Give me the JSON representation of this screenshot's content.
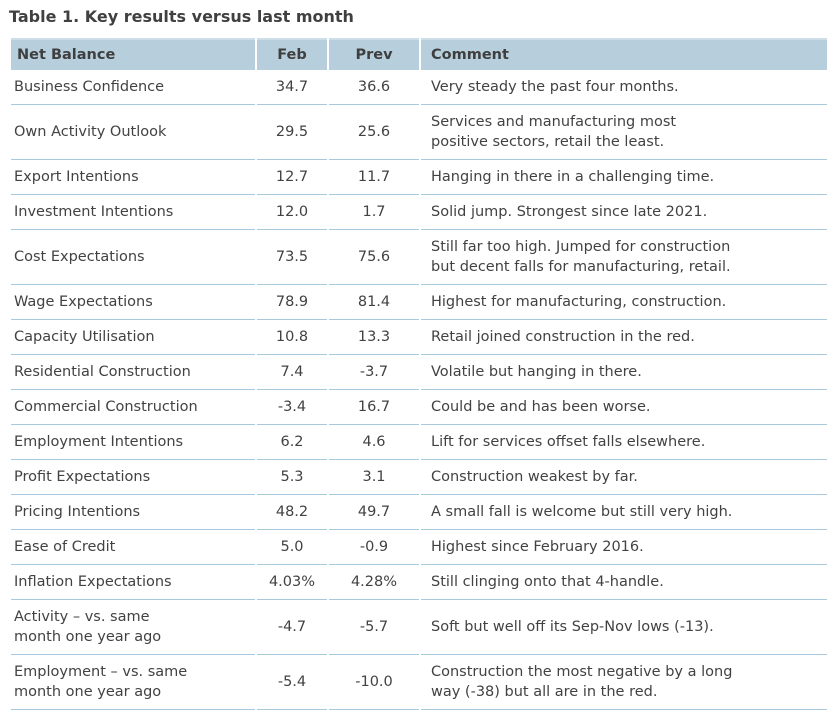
{
  "title": "Table 1. Key results versus last month",
  "colors": {
    "header_bg": "#b7cfdd",
    "row_border": "#a9cadd",
    "text": "#424242",
    "title_text": "#404040"
  },
  "table": {
    "columns": [
      "Net Balance",
      "Feb",
      "Prev",
      "Comment"
    ],
    "rows": [
      {
        "label": "Business Confidence",
        "feb": "34.7",
        "prev": "36.6",
        "comment": "Very steady the past four months."
      },
      {
        "label": "Own Activity Outlook",
        "feb": "29.5",
        "prev": "25.6",
        "comment": "Services and manufacturing most\npositive sectors, retail the least."
      },
      {
        "label": "Export Intentions",
        "feb": "12.7",
        "prev": "11.7",
        "comment": "Hanging in there in a challenging time."
      },
      {
        "label": "Investment Intentions",
        "feb": "12.0",
        "prev": "1.7",
        "comment": "Solid jump. Strongest since late 2021."
      },
      {
        "label": "Cost Expectations",
        "feb": "73.5",
        "prev": "75.6",
        "comment": "Still far too high. Jumped for construction\nbut decent falls for manufacturing, retail."
      },
      {
        "label": "Wage Expectations",
        "feb": "78.9",
        "prev": "81.4",
        "comment": "Highest for manufacturing, construction."
      },
      {
        "label": "Capacity Utilisation",
        "feb": "10.8",
        "prev": "13.3",
        "comment": "Retail joined construction in the red."
      },
      {
        "label": "Residential Construction",
        "feb": "7.4",
        "prev": "-3.7",
        "comment": "Volatile but hanging in there."
      },
      {
        "label": "Commercial Construction",
        "feb": "-3.4",
        "prev": "16.7",
        "comment": "Could be and has been worse."
      },
      {
        "label": "Employment Intentions",
        "feb": "6.2",
        "prev": "4.6",
        "comment": "Lift for services offset falls elsewhere."
      },
      {
        "label": "Profit Expectations",
        "feb": "5.3",
        "prev": "3.1",
        "comment": "Construction weakest by far."
      },
      {
        "label": "Pricing Intentions",
        "feb": "48.2",
        "prev": "49.7",
        "comment": "A small fall is welcome but still very high."
      },
      {
        "label": "Ease of Credit",
        "feb": "5.0",
        "prev": "-0.9",
        "comment": "Highest since February 2016."
      },
      {
        "label": "Inflation Expectations",
        "feb": "4.03%",
        "prev": "4.28%",
        "comment": "Still clinging onto that 4-handle."
      },
      {
        "label": "Activity – vs. same\nmonth one year ago",
        "feb": "-4.7",
        "prev": "-5.7",
        "comment": "Soft but well off its Sep-Nov lows (-13)."
      },
      {
        "label": "Employment – vs. same\nmonth one year ago",
        "feb": "-5.4",
        "prev": "-10.0",
        "comment": "Construction the most negative by a long\nway (-38) but all are in the red."
      }
    ]
  }
}
